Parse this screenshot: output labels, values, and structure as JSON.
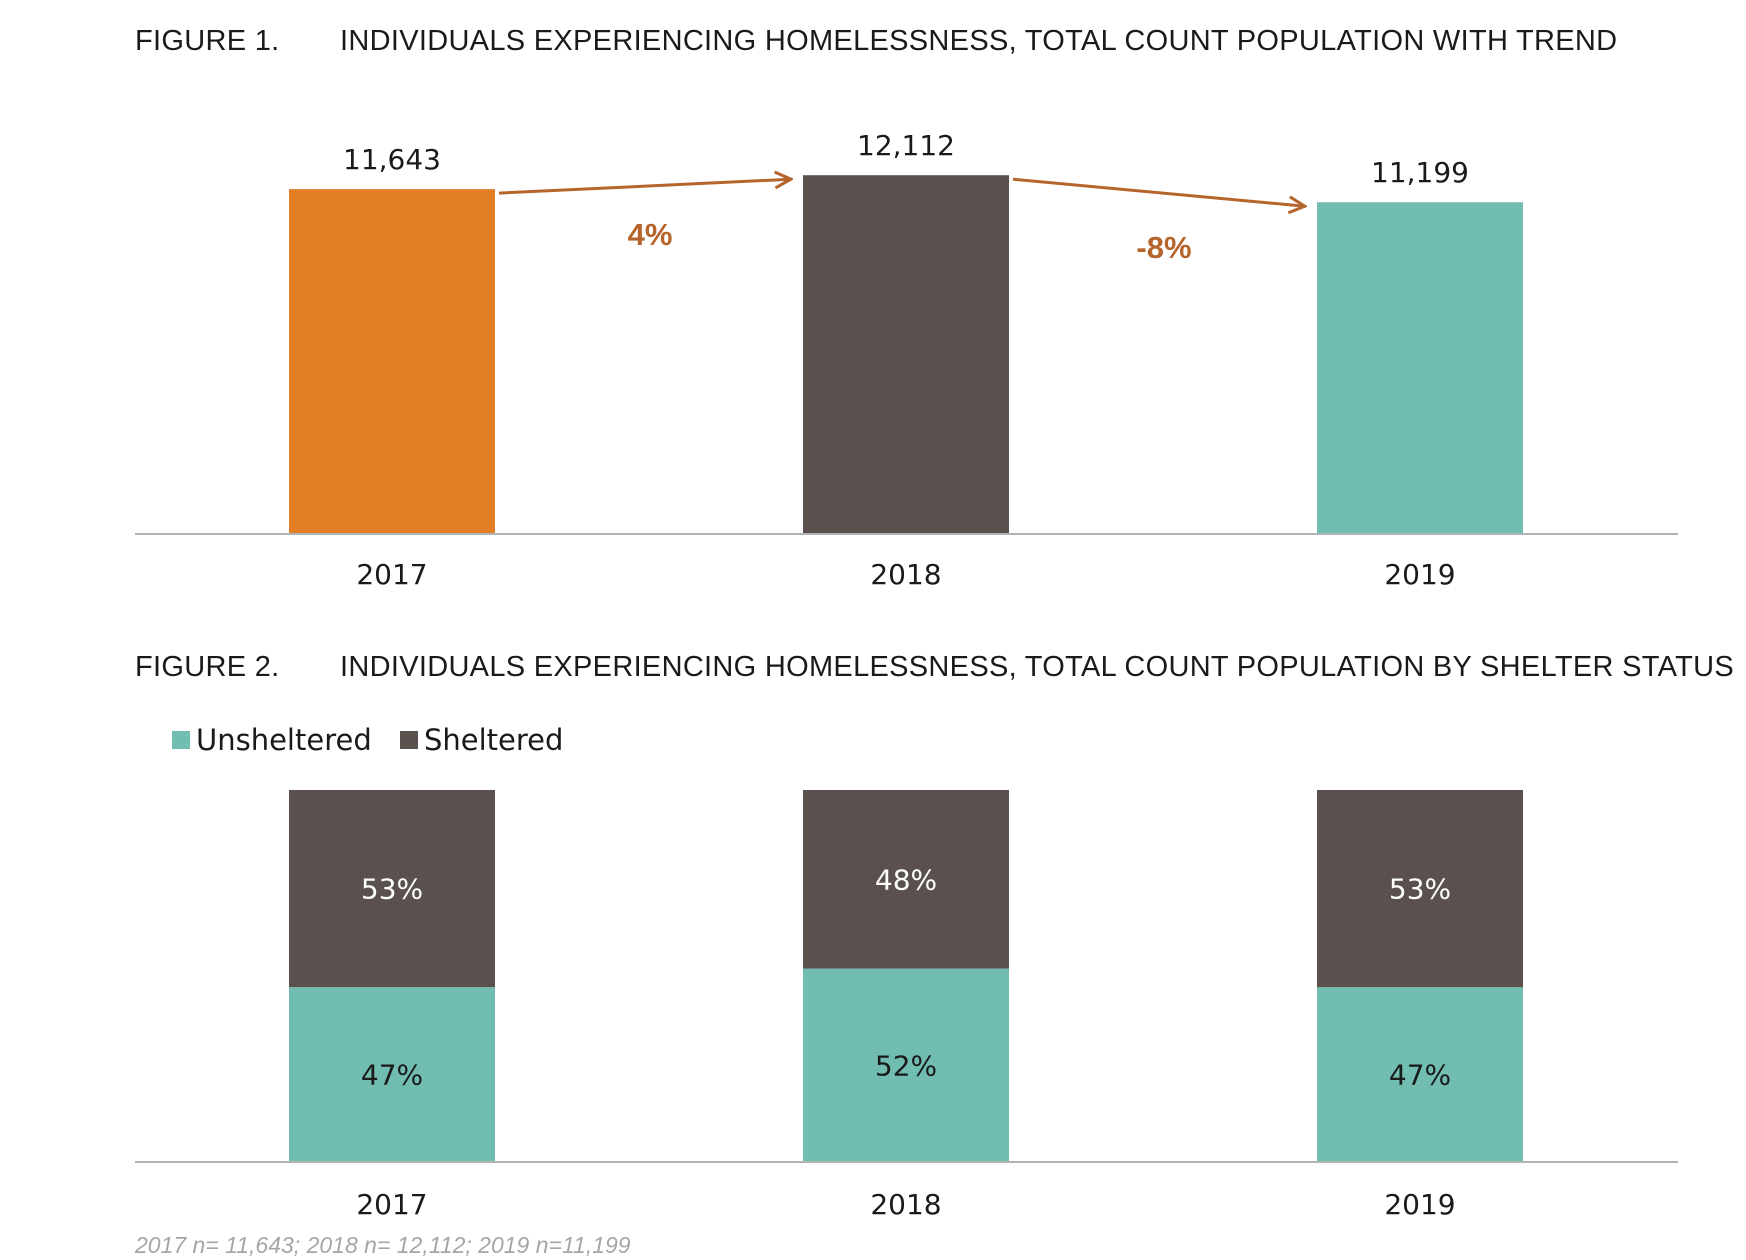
{
  "chart_data": [
    {
      "type": "bar",
      "figure_number": "FIGURE 1.",
      "title": "INDIVIDUALS EXPERIENCING HOMELESSNESS, TOTAL COUNT POPULATION WITH TREND",
      "categories": [
        "2017",
        "2018",
        "2019"
      ],
      "values": [
        11643,
        12112,
        11199
      ],
      "value_labels": [
        "11,643",
        "12,112",
        "11,199"
      ],
      "bar_colors": [
        "#e47e26",
        "#5a514f",
        "#72bdb1"
      ],
      "trend": {
        "color": "#b5652b",
        "changes": [
          {
            "from": "2017",
            "to": "2018",
            "label": "4%"
          },
          {
            "from": "2018",
            "to": "2019",
            "label": "-8%"
          }
        ]
      },
      "ylim": [
        0,
        13300
      ],
      "grid": false
    },
    {
      "type": "bar",
      "stacked": true,
      "normalized": true,
      "figure_number": "FIGURE 2.",
      "title": "INDIVIDUALS EXPERIENCING HOMELESSNESS, TOTAL COUNT POPULATION BY SHELTER STATUS",
      "categories": [
        "2017",
        "2018",
        "2019"
      ],
      "series": [
        {
          "name": "Unsheltered",
          "values": [
            47,
            52,
            47
          ],
          "labels": [
            "47%",
            "52%",
            "47%"
          ],
          "color": "#72bdb1",
          "label_color": "#1a1a1a"
        },
        {
          "name": "Sheltered",
          "values": [
            53,
            48,
            53
          ],
          "labels": [
            "53%",
            "48%",
            "53%"
          ],
          "color": "#5a514f",
          "label_color": "#ffffff"
        }
      ],
      "ylim": [
        0,
        100
      ],
      "legend": "top-left",
      "grid": false,
      "note": "2017 n= 11,643; 2018 n= 12,112; 2019 n=11,199"
    }
  ]
}
